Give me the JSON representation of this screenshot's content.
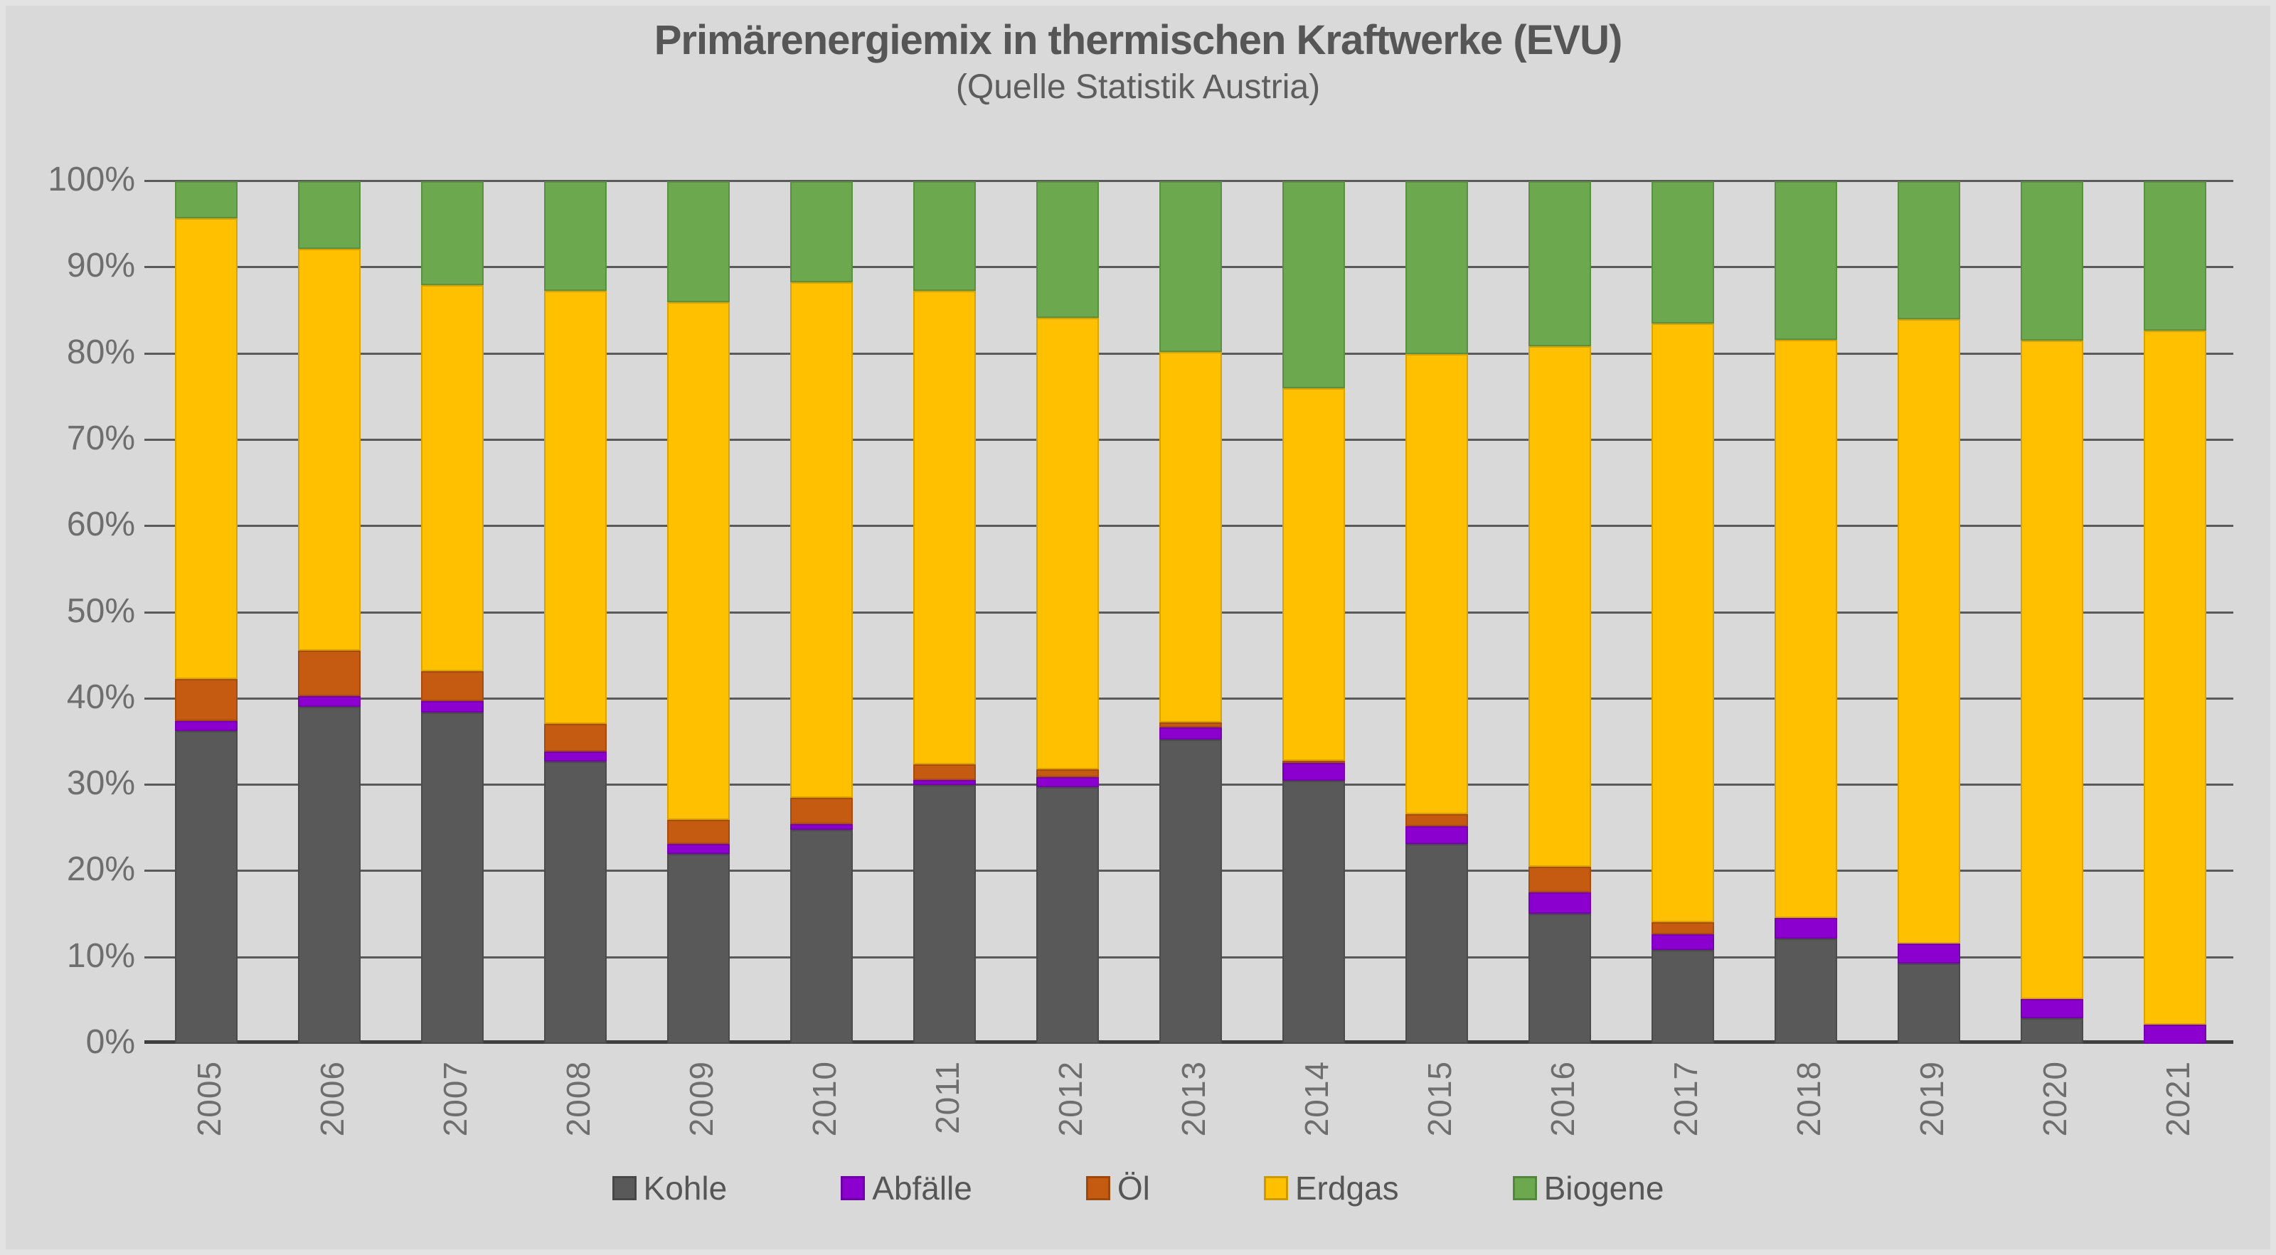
{
  "title": "Primärenergiemix in thermischen Kraftwerke (EVU)",
  "subtitle": "(Quelle Statistik Austria)",
  "colors": {
    "background": "#D9D9D9",
    "gridline": "#5A5A5A",
    "axis_line": "#3F3F3F",
    "title_text": "#565656",
    "tick_text": "#6E6E6E"
  },
  "chart_data": {
    "type": "bar",
    "stacked": true,
    "percent_stacked": true,
    "grid": true,
    "legend_position": "bottom",
    "xlabel": "",
    "ylabel": "",
    "ylim": [
      0,
      100
    ],
    "yticks": [
      "0%",
      "10%",
      "20%",
      "30%",
      "40%",
      "50%",
      "60%",
      "70%",
      "80%",
      "90%",
      "100%"
    ],
    "categories": [
      "2005",
      "2006",
      "2007",
      "2008",
      "2009",
      "2010",
      "2011",
      "2012",
      "2013",
      "2014",
      "2015",
      "2016",
      "2017",
      "2018",
      "2019",
      "2020",
      "2021"
    ],
    "series": [
      {
        "name": "Kohle",
        "color": "#595959",
        "values": [
          36.3,
          39.1,
          38.4,
          32.7,
          22.0,
          24.8,
          30.0,
          29.8,
          35.3,
          30.5,
          23.2,
          15.1,
          10.9,
          12.2,
          9.3,
          3.0,
          0.0
        ]
      },
      {
        "name": "Abfälle",
        "color": "#8B00CE",
        "values": [
          1.1,
          1.2,
          1.3,
          1.2,
          1.2,
          0.7,
          0.6,
          1.1,
          1.4,
          2.1,
          2.0,
          2.5,
          1.8,
          2.4,
          2.3,
          2.2,
          2.2
        ]
      },
      {
        "name": "Öl",
        "color": "#C55A11",
        "values": [
          4.9,
          5.3,
          3.5,
          3.2,
          2.8,
          3.0,
          1.8,
          0.9,
          0.6,
          0.2,
          1.4,
          2.9,
          1.4,
          0.0,
          0.0,
          0.0,
          0.0
        ]
      },
      {
        "name": "Erdgas",
        "color": "#FFC000",
        "values": [
          53.4,
          46.6,
          44.8,
          50.2,
          60.0,
          59.8,
          54.9,
          52.4,
          42.9,
          43.2,
          53.4,
          60.4,
          69.4,
          67.0,
          72.4,
          76.3,
          80.5
        ]
      },
      {
        "name": "Biogene",
        "color": "#6BA84E",
        "values": [
          4.3,
          7.8,
          12.0,
          12.7,
          14.0,
          11.7,
          12.7,
          15.8,
          19.8,
          24.0,
          20.0,
          19.1,
          16.5,
          18.4,
          16.0,
          18.5,
          17.3
        ]
      }
    ]
  }
}
